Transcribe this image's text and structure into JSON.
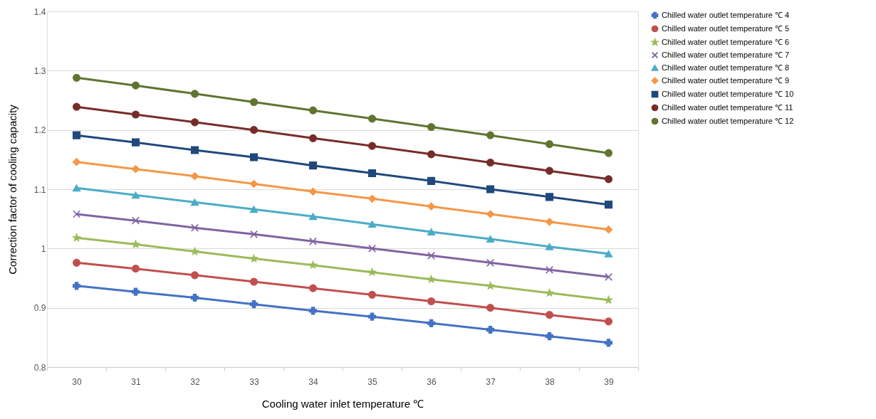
{
  "chart_data": {
    "type": "line",
    "xlabel": "Cooling water inlet temperature ℃",
    "ylabel": "Correction factor of cooling capacity",
    "categories": [
      "30",
      "31",
      "32",
      "33",
      "34",
      "35",
      "36",
      "37",
      "38",
      "39"
    ],
    "ylim": [
      0.8,
      1.4
    ],
    "yticks": [
      0.8,
      0.9,
      1,
      1.1,
      1.2,
      1.3,
      1.4
    ],
    "grid": "y",
    "legend": "right",
    "line_style": "solid",
    "series": [
      {
        "name": "Chilled water outlet temperature ℃ 4",
        "color": "#4472c4",
        "marker": "cross",
        "values": [
          0.937,
          0.927,
          0.917,
          0.906,
          0.895,
          0.885,
          0.874,
          0.863,
          0.852,
          0.841
        ]
      },
      {
        "name": "Chilled water outlet temperature ℃ 5",
        "color": "#c0504d",
        "marker": "circle",
        "values": [
          0.976,
          0.966,
          0.955,
          0.944,
          0.933,
          0.922,
          0.911,
          0.9,
          0.888,
          0.877
        ]
      },
      {
        "name": "Chilled water outlet temperature ℃ 6",
        "color": "#9bbb59",
        "marker": "star",
        "values": [
          1.018,
          1.007,
          0.995,
          0.983,
          0.972,
          0.96,
          0.948,
          0.937,
          0.925,
          0.913
        ]
      },
      {
        "name": "Chilled water outlet temperature ℃ 7",
        "color": "#8064a2",
        "marker": "x",
        "values": [
          1.058,
          1.047,
          1.035,
          1.024,
          1.012,
          1.0,
          0.988,
          0.976,
          0.964,
          0.952
        ]
      },
      {
        "name": "Chilled water outlet temperature ℃ 8",
        "color": "#4bacc6",
        "marker": "triangle",
        "values": [
          1.102,
          1.09,
          1.078,
          1.066,
          1.054,
          1.041,
          1.028,
          1.016,
          1.003,
          0.991
        ]
      },
      {
        "name": "Chilled water outlet temperature ℃ 9",
        "color": "#f79646",
        "marker": "diamond",
        "values": [
          1.146,
          1.134,
          1.122,
          1.109,
          1.096,
          1.084,
          1.071,
          1.058,
          1.045,
          1.032
        ]
      },
      {
        "name": "Chilled water outlet temperature ℃ 10",
        "color": "#1f497d",
        "marker": "square",
        "values": [
          1.191,
          1.179,
          1.166,
          1.154,
          1.14,
          1.127,
          1.114,
          1.1,
          1.087,
          1.074
        ]
      },
      {
        "name": "Chilled water outlet temperature ℃ 11",
        "color": "#772c2a",
        "marker": "circle",
        "values": [
          1.239,
          1.226,
          1.213,
          1.2,
          1.186,
          1.173,
          1.159,
          1.145,
          1.131,
          1.117
        ]
      },
      {
        "name": "Chilled water outlet temperature ℃ 12",
        "color": "#5f7530",
        "marker": "circle",
        "values": [
          1.288,
          1.275,
          1.261,
          1.247,
          1.233,
          1.219,
          1.205,
          1.191,
          1.176,
          1.161
        ]
      }
    ]
  }
}
